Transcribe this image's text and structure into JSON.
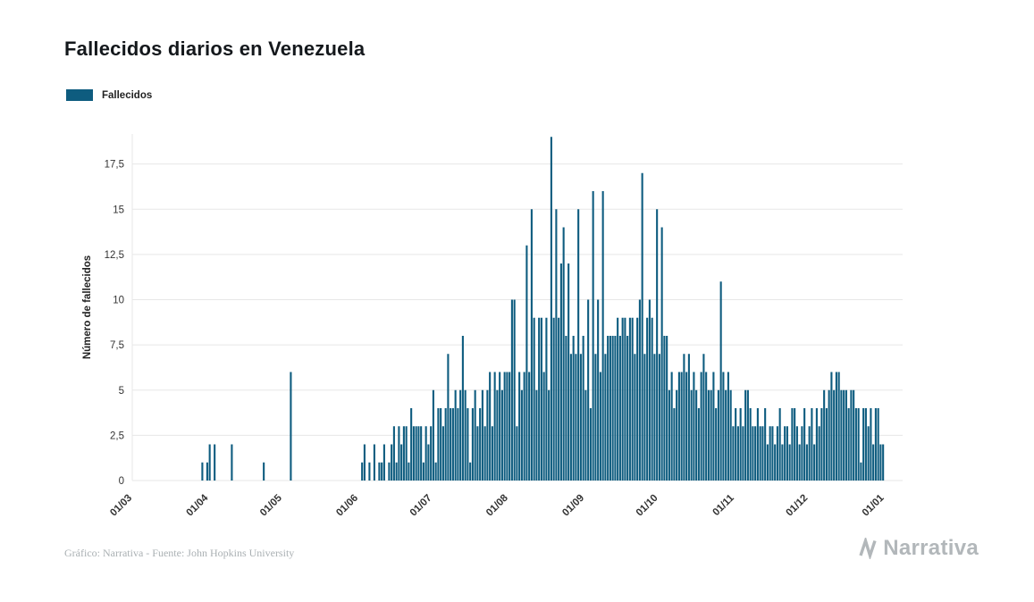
{
  "page": {
    "title": "Fallecidos diarios en Venezuela",
    "footer_credit": "Gráfico: Narrativa - Fuente: John Hopkins University",
    "brand": "Narrativa"
  },
  "legend": {
    "label": "Fallecidos",
    "color": "#0e5c7f"
  },
  "chart_data": {
    "type": "bar",
    "title": "Fallecidos diarios en Venezuela",
    "xlabel": "",
    "ylabel": "Número de fallecidos",
    "series_name": "Fallecidos",
    "bar_color": "#0e5c7f",
    "grid": true,
    "legend_position": "top-left",
    "ylim": [
      0,
      19
    ],
    "yticks": [
      0,
      2.5,
      5,
      7.5,
      10,
      12.5,
      15,
      17.5
    ],
    "ytick_labels": [
      "0",
      "2,5",
      "5",
      "7,5",
      "10",
      "12,5",
      "15",
      "17,5"
    ],
    "x_unit": "day",
    "x_tick_labels": [
      "01/03",
      "01/04",
      "01/05",
      "01/06",
      "01/07",
      "01/08",
      "01/09",
      "01/10",
      "01/11",
      "01/12",
      "01/01"
    ],
    "x_tick_day_index": [
      0,
      31,
      61,
      92,
      122,
      153,
      184,
      214,
      245,
      275,
      306
    ],
    "values": [
      0,
      0,
      0,
      0,
      0,
      0,
      0,
      0,
      0,
      0,
      0,
      0,
      0,
      0,
      0,
      0,
      0,
      0,
      0,
      0,
      0,
      0,
      0,
      0,
      0,
      0,
      0,
      0,
      1,
      0,
      1,
      2,
      0,
      2,
      0,
      0,
      0,
      0,
      0,
      0,
      2,
      0,
      0,
      0,
      0,
      0,
      0,
      0,
      0,
      0,
      0,
      0,
      0,
      1,
      0,
      0,
      0,
      0,
      0,
      0,
      0,
      0,
      0,
      0,
      6,
      0,
      0,
      0,
      0,
      0,
      0,
      0,
      0,
      0,
      0,
      0,
      0,
      0,
      0,
      0,
      0,
      0,
      0,
      0,
      0,
      0,
      0,
      0,
      0,
      0,
      0,
      0,
      0,
      1,
      2,
      0,
      1,
      0,
      2,
      0,
      1,
      1,
      2,
      0,
      1,
      2,
      3,
      1,
      3,
      2,
      3,
      3,
      1,
      4,
      3,
      3,
      3,
      3,
      1,
      3,
      2,
      3,
      5,
      1,
      4,
      4,
      3,
      4,
      7,
      4,
      4,
      5,
      4,
      5,
      8,
      5,
      4,
      1,
      4,
      5,
      3,
      4,
      5,
      3,
      5,
      6,
      3,
      6,
      5,
      6,
      5,
      6,
      6,
      6,
      10,
      10,
      3,
      6,
      5,
      6,
      13,
      6,
      15,
      9,
      5,
      9,
      9,
      6,
      9,
      5,
      19,
      9,
      15,
      9,
      12,
      14,
      8,
      12,
      7,
      8,
      7,
      15,
      7,
      8,
      5,
      10,
      4,
      16,
      7,
      10,
      6,
      16,
      7,
      8,
      8,
      8,
      8,
      9,
      8,
      9,
      9,
      8,
      9,
      9,
      7,
      9,
      10,
      17,
      7,
      9,
      10,
      9,
      7,
      15,
      7,
      14,
      8,
      8,
      5,
      6,
      4,
      5,
      6,
      6,
      7,
      6,
      7,
      5,
      6,
      5,
      4,
      6,
      7,
      6,
      5,
      5,
      6,
      4,
      5,
      11,
      6,
      5,
      6,
      5,
      3,
      4,
      3,
      4,
      3,
      5,
      5,
      4,
      3,
      3,
      4,
      3,
      3,
      4,
      2,
      3,
      3,
      2,
      3,
      4,
      2,
      3,
      3,
      2,
      4,
      4,
      3,
      2,
      3,
      4,
      2,
      3,
      4,
      2,
      4,
      3,
      4,
      5,
      4,
      5,
      6,
      5,
      6,
      6,
      5,
      5,
      5,
      4,
      5,
      5,
      4,
      4,
      1,
      4,
      4,
      3,
      4,
      2,
      4,
      4,
      2,
      2
    ]
  }
}
